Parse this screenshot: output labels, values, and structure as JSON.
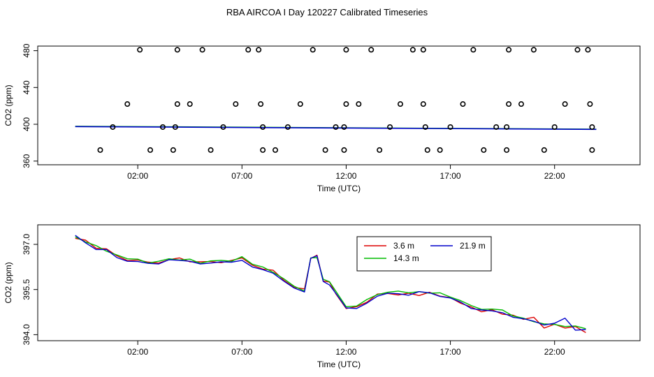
{
  "chart_data": [
    {
      "type": "scatter",
      "title": "RBA AIRCOA I  Day 120227  Calibrated Timeseries",
      "xlabel": "Time (UTC)",
      "ylabel": "CO2 (ppm)",
      "xlim": [
        -2.8,
        26.1
      ],
      "ylim": [
        356,
        485
      ],
      "xticks": [
        {
          "value": 2,
          "label": "02:00"
        },
        {
          "value": 7,
          "label": "07:00"
        },
        {
          "value": 12,
          "label": "12:00"
        },
        {
          "value": 17,
          "label": "17:00"
        },
        {
          "value": 22,
          "label": "22:00"
        }
      ],
      "yticks": [
        {
          "value": 360,
          "label": "360"
        },
        {
          "value": 400,
          "label": "400"
        },
        {
          "value": 440,
          "label": "440"
        },
        {
          "value": 480,
          "label": "480"
        }
      ],
      "markers": [
        {
          "x": 0.2,
          "y": 372
        },
        {
          "x": 0.8,
          "y": 397
        },
        {
          "x": 1.5,
          "y": 422
        },
        {
          "x": 2.1,
          "y": 481
        },
        {
          "x": 2.6,
          "y": 372
        },
        {
          "x": 3.2,
          "y": 397
        },
        {
          "x": 3.7,
          "y": 372
        },
        {
          "x": 3.8,
          "y": 397
        },
        {
          "x": 3.9,
          "y": 422
        },
        {
          "x": 3.9,
          "y": 481
        },
        {
          "x": 4.5,
          "y": 422
        },
        {
          "x": 5.1,
          "y": 481
        },
        {
          "x": 5.5,
          "y": 372
        },
        {
          "x": 6.1,
          "y": 397
        },
        {
          "x": 6.7,
          "y": 422
        },
        {
          "x": 7.3,
          "y": 481
        },
        {
          "x": 7.8,
          "y": 481
        },
        {
          "x": 7.9,
          "y": 422
        },
        {
          "x": 8.0,
          "y": 397
        },
        {
          "x": 8.0,
          "y": 372
        },
        {
          "x": 8.6,
          "y": 372
        },
        {
          "x": 9.2,
          "y": 397
        },
        {
          "x": 9.8,
          "y": 422
        },
        {
          "x": 10.4,
          "y": 481
        },
        {
          "x": 11.0,
          "y": 372
        },
        {
          "x": 11.5,
          "y": 397
        },
        {
          "x": 11.9,
          "y": 372
        },
        {
          "x": 11.9,
          "y": 397
        },
        {
          "x": 12.0,
          "y": 422
        },
        {
          "x": 12.0,
          "y": 481
        },
        {
          "x": 12.6,
          "y": 422
        },
        {
          "x": 13.2,
          "y": 481
        },
        {
          "x": 13.6,
          "y": 372
        },
        {
          "x": 14.1,
          "y": 397
        },
        {
          "x": 14.6,
          "y": 422
        },
        {
          "x": 15.2,
          "y": 481
        },
        {
          "x": 15.7,
          "y": 481
        },
        {
          "x": 15.7,
          "y": 422
        },
        {
          "x": 15.8,
          "y": 397
        },
        {
          "x": 15.9,
          "y": 372
        },
        {
          "x": 16.5,
          "y": 372
        },
        {
          "x": 17.0,
          "y": 397
        },
        {
          "x": 17.6,
          "y": 422
        },
        {
          "x": 18.1,
          "y": 481
        },
        {
          "x": 18.6,
          "y": 372
        },
        {
          "x": 19.2,
          "y": 397
        },
        {
          "x": 19.7,
          "y": 372
        },
        {
          "x": 19.7,
          "y": 397
        },
        {
          "x": 19.8,
          "y": 422
        },
        {
          "x": 19.8,
          "y": 481
        },
        {
          "x": 20.4,
          "y": 422
        },
        {
          "x": 21.0,
          "y": 481
        },
        {
          "x": 21.5,
          "y": 372
        },
        {
          "x": 22.0,
          "y": 397
        },
        {
          "x": 22.5,
          "y": 422
        },
        {
          "x": 23.1,
          "y": 481
        },
        {
          "x": 23.6,
          "y": 481
        },
        {
          "x": 23.7,
          "y": 422
        },
        {
          "x": 23.8,
          "y": 397
        },
        {
          "x": 23.8,
          "y": 372
        }
      ],
      "series": [
        {
          "name": "green",
          "color": "#00bb00",
          "x": [
            -1,
            24
          ],
          "y": [
            397.8,
            394.6
          ]
        },
        {
          "name": "blue",
          "color": "#0000cc",
          "x": [
            -1,
            24
          ],
          "y": [
            397.5,
            394.5
          ]
        }
      ]
    },
    {
      "type": "line",
      "xlabel": "Time (UTC)",
      "ylabel": "CO2 (ppm)",
      "xlim": [
        -2.8,
        26.1
      ],
      "ylim": [
        393.8,
        397.65
      ],
      "xticks": [
        {
          "value": 2,
          "label": "02:00"
        },
        {
          "value": 7,
          "label": "07:00"
        },
        {
          "value": 12,
          "label": "12:00"
        },
        {
          "value": 17,
          "label": "17:00"
        },
        {
          "value": 22,
          "label": "22:00"
        }
      ],
      "yticks": [
        {
          "value": 394.0,
          "label": "394.0"
        },
        {
          "value": 395.5,
          "label": "395.5"
        },
        {
          "value": 397.0,
          "label": "397.0"
        }
      ],
      "legend": {
        "position": "top-right"
      },
      "base_x": [
        -1,
        -0.5,
        0,
        0.5,
        1,
        1.5,
        2,
        2.5,
        3,
        3.5,
        4,
        4.5,
        5,
        5.5,
        6,
        6.5,
        7,
        7.5,
        8,
        8.5,
        9,
        9.5,
        10,
        10.3,
        10.6,
        10.9,
        11.2,
        11.5,
        12,
        12.5,
        13,
        13.5,
        14,
        14.5,
        15,
        15.5,
        16,
        16.5,
        17,
        17.5,
        18,
        18.5,
        19,
        19.5,
        20,
        20.5,
        21,
        21.5,
        22,
        22.5,
        23,
        23.5
      ],
      "base_y": [
        397.2,
        397.1,
        396.9,
        396.8,
        396.6,
        396.5,
        396.45,
        396.4,
        396.4,
        396.45,
        396.5,
        396.45,
        396.4,
        396.4,
        396.4,
        396.45,
        396.5,
        396.3,
        396.2,
        396.1,
        395.8,
        395.6,
        395.5,
        396.5,
        396.6,
        395.8,
        395.7,
        395.4,
        394.95,
        394.9,
        395.1,
        395.3,
        395.35,
        395.35,
        395.35,
        395.35,
        395.35,
        395.3,
        395.2,
        395.1,
        394.9,
        394.8,
        394.8,
        394.7,
        394.6,
        394.5,
        394.4,
        394.3,
        394.3,
        394.25,
        394.2,
        394.15
      ],
      "series": [
        {
          "name": "3.6 m",
          "color": "#dd0000",
          "offsets": [
            0,
            0.04,
            -0.03,
            0.05,
            0.02,
            -0.04,
            0.03,
            0.01,
            -0.02,
            0.04,
            0.05,
            -0.03,
            0.02,
            0.03,
            -0.01,
            0.02,
            0.05,
            0.01,
            -0.02,
            0.04,
            0.01,
            -0.03,
            0.02,
            0.03,
            0.04,
            -0.02,
            0.05,
            -0.04,
            -0.08,
            0.03,
            -0.02,
            0.05,
            0.02,
            -0.03,
            0.03,
            -0.05,
            0.06,
            -0.02,
            0.03,
            -0.06,
            0.02,
            -0.04,
            0.03,
            -0.02,
            0.05,
            0.01,
            0.18,
            -0.08,
            0.05,
            -0.03,
            0.07,
            -0.08
          ]
        },
        {
          "name": "14.3 m",
          "color": "#00bb00",
          "offsets": [
            0.05,
            -0.02,
            0.06,
            -0.03,
            0.05,
            0.02,
            0.06,
            -0.02,
            0.04,
            0.07,
            -0.02,
            0.06,
            -0.03,
            0.05,
            0.07,
            -0.01,
            0.09,
            0.04,
            0.05,
            -0.03,
            0.06,
            0.01,
            -0.05,
            0.05,
            -0.04,
            0.04,
            0.06,
            0.05,
            -0.02,
            0.05,
            0.07,
            0.03,
            0.06,
            0.1,
            0.04,
            0.08,
            0.03,
            0.09,
            0.05,
            0.03,
            0.07,
            0.04,
            0.05,
            0.12,
            0.02,
            0.05,
            0.03,
            0.06,
            0.04,
            0.02,
            0.09,
            0.05
          ]
        },
        {
          "name": "21.9 m",
          "color": "#0000cc",
          "offsets": [
            0.1,
            -0.05,
            -0.07,
            0.03,
            -0.04,
            -0.06,
            -0.02,
            -0.03,
            -0.05,
            0.04,
            -0.03,
            -0.01,
            -0.05,
            -0.02,
            0.02,
            -0.04,
            -0.03,
            -0.05,
            -0.04,
            -0.06,
            -0.02,
            -0.05,
            -0.08,
            0.04,
            0.02,
            -0.03,
            -0.05,
            -0.02,
            -0.06,
            -0.03,
            -0.05,
            -0.02,
            0.03,
            0.01,
            -0.04,
            0.08,
            0.04,
            -0.03,
            0.02,
            -0.02,
            -0.03,
            0.02,
            -0.01,
            0.03,
            -0.02,
            0.03,
            0.05,
            0.02,
            0.08,
            0.3,
            -0.05,
            0.02
          ]
        }
      ]
    }
  ]
}
